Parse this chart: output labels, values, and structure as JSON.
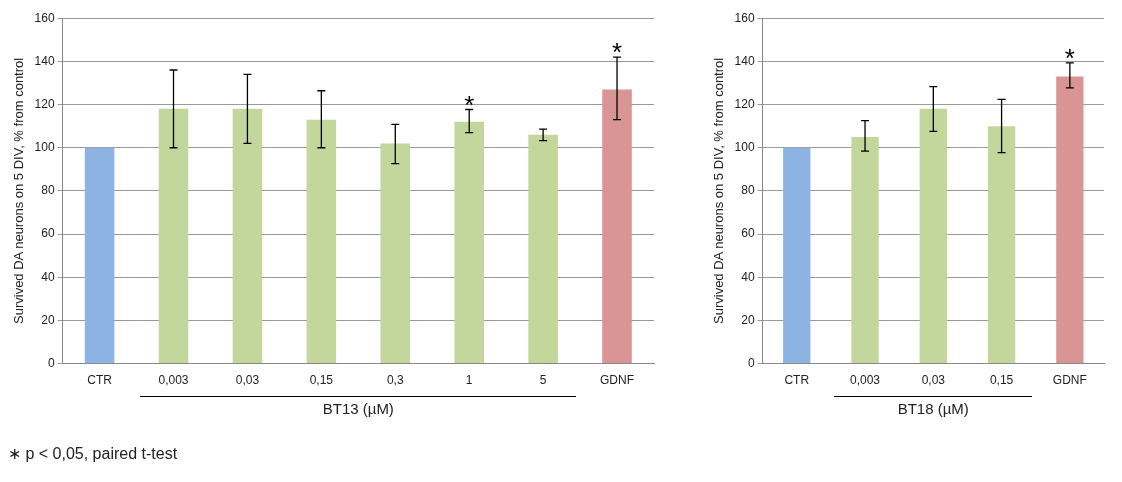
{
  "chart_data": [
    {
      "type": "bar",
      "ylabel": "Survived DA neurons on 5 DIV, % from control",
      "categories": [
        "CTR",
        "0,003",
        "0,03",
        "0,15",
        "0,3",
        "1",
        "5",
        "GDNF"
      ],
      "values": [
        100,
        118,
        118,
        113,
        102,
        112,
        106,
        127
      ],
      "colors": [
        "#8db3e2",
        "#c3d69b",
        "#c3d69b",
        "#c3d69b",
        "#c3d69b",
        "#c3d69b",
        "#c3d69b",
        "#d99594"
      ],
      "errors": [
        null,
        [
          100,
          136
        ],
        [
          102,
          134
        ],
        [
          100,
          126.4
        ],
        [
          92.6,
          110.8
        ],
        [
          107,
          117.7
        ],
        [
          103.3,
          108.6
        ],
        [
          113,
          142
        ]
      ],
      "ylim": [
        0,
        160
      ],
      "yticks": [
        0,
        20,
        40,
        60,
        80,
        100,
        120,
        140,
        160
      ],
      "grid": "y",
      "annotations": [
        "BT13 (µM)",
        "∗ p < 0,05, paired t-test",
        {
          "text": "*",
          "x": "1",
          "y": 112
        },
        {
          "text": "*",
          "x": "GDNF",
          "y": 127
        }
      ]
    },
    {
      "type": "bar",
      "ylabel": "Survived DA neurons on 5 DIV, % from control",
      "categories": [
        "CTR",
        "0,003",
        "0,03",
        "0,15",
        "GDNF"
      ],
      "values": [
        100,
        105,
        118,
        110,
        133
      ],
      "colors": [
        "#8db3e2",
        "#c3d69b",
        "#c3d69b",
        "#c3d69b",
        "#d99594"
      ],
      "errors": [
        null,
        [
          98.4,
          112.6
        ],
        [
          107.6,
          128.3
        ],
        [
          97.7,
          122.4
        ],
        [
          127.7,
          139.3
        ]
      ],
      "ylim": [
        0,
        160
      ],
      "yticks": [
        0,
        20,
        40,
        60,
        80,
        100,
        120,
        140,
        160
      ],
      "grid": "y",
      "annotations": [
        "BT18 (µM)",
        {
          "text": "*",
          "x": "GDNF",
          "y": 133
        }
      ]
    }
  ]
}
